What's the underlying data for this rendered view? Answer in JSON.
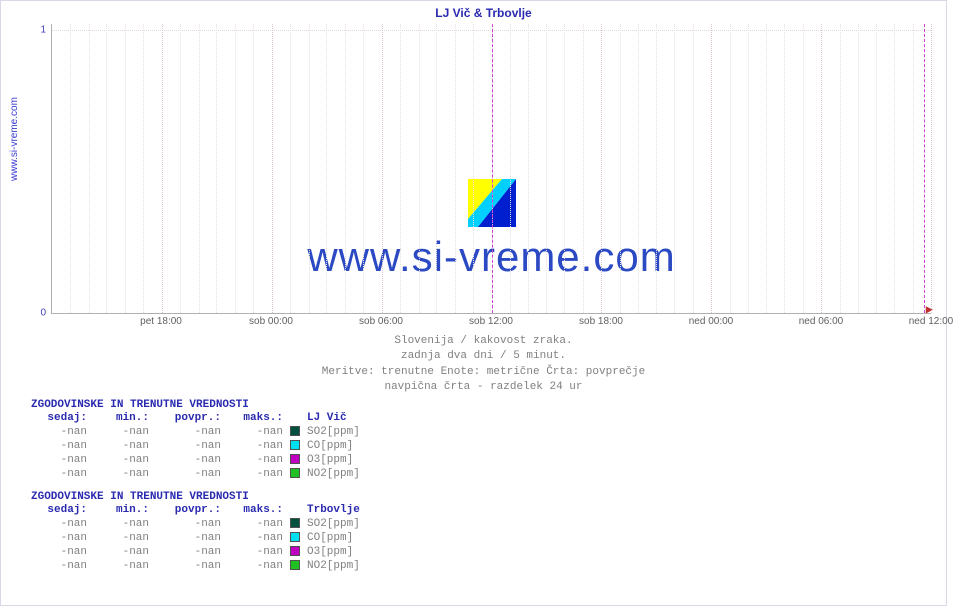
{
  "side_label": "www.si-vreme.com",
  "chart": {
    "title": "LJ Vič & Trbovlje",
    "background_color": "#ffffff",
    "grid_color": "#e8e0e0",
    "grid_major_color": "#d8c8c8",
    "axis_color": "#b0b0b0",
    "divider_color": "#d040d0",
    "y": {
      "ticks": [
        {
          "value": "0",
          "pos_pct": 100
        },
        {
          "value": "1",
          "pos_pct": 2
        }
      ],
      "label_color": "#4040c0",
      "label_fontsize": 10
    },
    "x": {
      "labels": [
        {
          "text": "pet 18:00",
          "pos_pct": 12.5,
          "major": true
        },
        {
          "text": "sob 00:00",
          "pos_pct": 25.0,
          "major": true
        },
        {
          "text": "sob 06:00",
          "pos_pct": 37.5,
          "major": true
        },
        {
          "text": "sob 12:00",
          "pos_pct": 50.0,
          "major": true
        },
        {
          "text": "sob 18:00",
          "pos_pct": 62.5,
          "major": true
        },
        {
          "text": "ned 00:00",
          "pos_pct": 75.0,
          "major": true
        },
        {
          "text": "ned 06:00",
          "pos_pct": 87.5,
          "major": true
        },
        {
          "text": "ned 12:00",
          "pos_pct": 100.0,
          "major": true
        }
      ],
      "minor_step_pct": 2.083,
      "label_color": "#606060",
      "label_fontsize": 10
    },
    "divider24_pos_pct": 50.0,
    "watermark": {
      "text": "www.si-vreme.com",
      "text_color": "#2040c0",
      "text_fontsize": 42,
      "logo_colors": {
        "a": "#ffff00",
        "b": "#00d0ff",
        "c": "#0020d0"
      }
    },
    "caption": {
      "line1": "Slovenija / kakovost zraka.",
      "line2": "zadnja dva dni / 5 minut.",
      "line3": "Meritve: trenutne  Enote: metrične  Črta: povprečje",
      "line4": "navpična črta - razdelek 24 ur"
    }
  },
  "tables": {
    "title": "ZGODOVINSKE IN TRENUTNE VREDNOSTI",
    "headers": {
      "sedaj": "sedaj:",
      "min": "min.:",
      "povpr": "povpr.:",
      "maks": "maks.:"
    },
    "colors_text": "#808080",
    "title_color": "#2a2ab0",
    "groups": [
      {
        "location": "LJ Vič",
        "rows": [
          {
            "sedaj": "-nan",
            "min": "-nan",
            "povpr": "-nan",
            "maks": "-nan",
            "swatch": "#005040",
            "label": "SO2[ppm]"
          },
          {
            "sedaj": "-nan",
            "min": "-nan",
            "povpr": "-nan",
            "maks": "-nan",
            "swatch": "#00e0f0",
            "label": "CO[ppm]"
          },
          {
            "sedaj": "-nan",
            "min": "-nan",
            "povpr": "-nan",
            "maks": "-nan",
            "swatch": "#c000c0",
            "label": "O3[ppm]"
          },
          {
            "sedaj": "-nan",
            "min": "-nan",
            "povpr": "-nan",
            "maks": "-nan",
            "swatch": "#20c020",
            "label": "NO2[ppm]"
          }
        ]
      },
      {
        "location": "Trbovlje",
        "rows": [
          {
            "sedaj": "-nan",
            "min": "-nan",
            "povpr": "-nan",
            "maks": "-nan",
            "swatch": "#005040",
            "label": "SO2[ppm]"
          },
          {
            "sedaj": "-nan",
            "min": "-nan",
            "povpr": "-nan",
            "maks": "-nan",
            "swatch": "#00e0f0",
            "label": "CO[ppm]"
          },
          {
            "sedaj": "-nan",
            "min": "-nan",
            "povpr": "-nan",
            "maks": "-nan",
            "swatch": "#c000c0",
            "label": "O3[ppm]"
          },
          {
            "sedaj": "-nan",
            "min": "-nan",
            "povpr": "-nan",
            "maks": "-nan",
            "swatch": "#20c020",
            "label": "NO2[ppm]"
          }
        ]
      }
    ]
  }
}
